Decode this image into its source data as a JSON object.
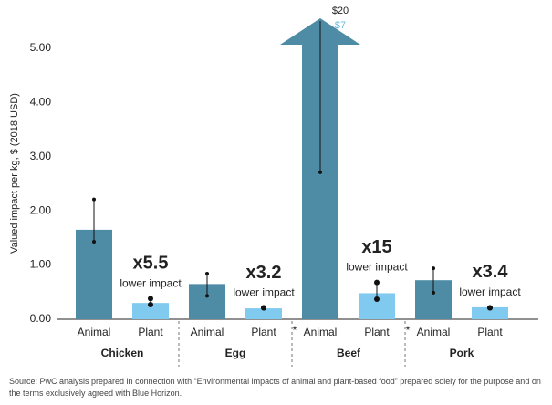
{
  "chart_data": {
    "type": "bar",
    "ylabel": "Valued impact per kg, $ (2018 USD)",
    "categories": [
      "Chicken",
      "Egg",
      "Beef",
      "Pork"
    ],
    "series": [
      {
        "name": "Animal",
        "color": "#4e8ca6",
        "values": [
          1.65,
          0.65,
          7,
          0.72
        ],
        "value_labels": [
          null,
          null,
          "$7",
          null
        ],
        "value_label_color": "#6cb8e0",
        "low": [
          1.43,
          0.43,
          2.71,
          0.49
        ],
        "high": [
          2.21,
          0.84,
          20,
          0.94
        ],
        "high_labels": [
          null,
          null,
          "$20",
          null
        ]
      },
      {
        "name": "Plant",
        "color": "#80c9ef",
        "values": [
          0.3,
          0.2,
          0.48,
          0.22
        ],
        "low": [
          0.27,
          0.21,
          0.37,
          0.21
        ],
        "high": [
          0.38,
          0.21,
          0.68,
          0.21
        ],
        "notes": [
          null,
          "*",
          "*",
          null
        ]
      }
    ],
    "ratios": [
      "x5.5",
      "x3.2",
      "x15",
      "x3.4"
    ],
    "ratio_caption": "lower impact",
    "ylim": [
      0,
      5.5
    ],
    "yticks": [
      {
        "value": 0,
        "label": "0.00"
      },
      {
        "value": 1,
        "label": "1.00"
      },
      {
        "value": 2,
        "label": "2.00"
      },
      {
        "value": 3,
        "label": "3.00"
      },
      {
        "value": 4,
        "label": "4.00"
      },
      {
        "value": 5,
        "label": "5.00"
      }
    ],
    "grid": false,
    "source": "Source: PwC analysis prepared in connection with “Environmental impacts of animal and plant-based food” prepared solely for the purpose and on the terms exclusively agreed with Blue Horizon."
  }
}
